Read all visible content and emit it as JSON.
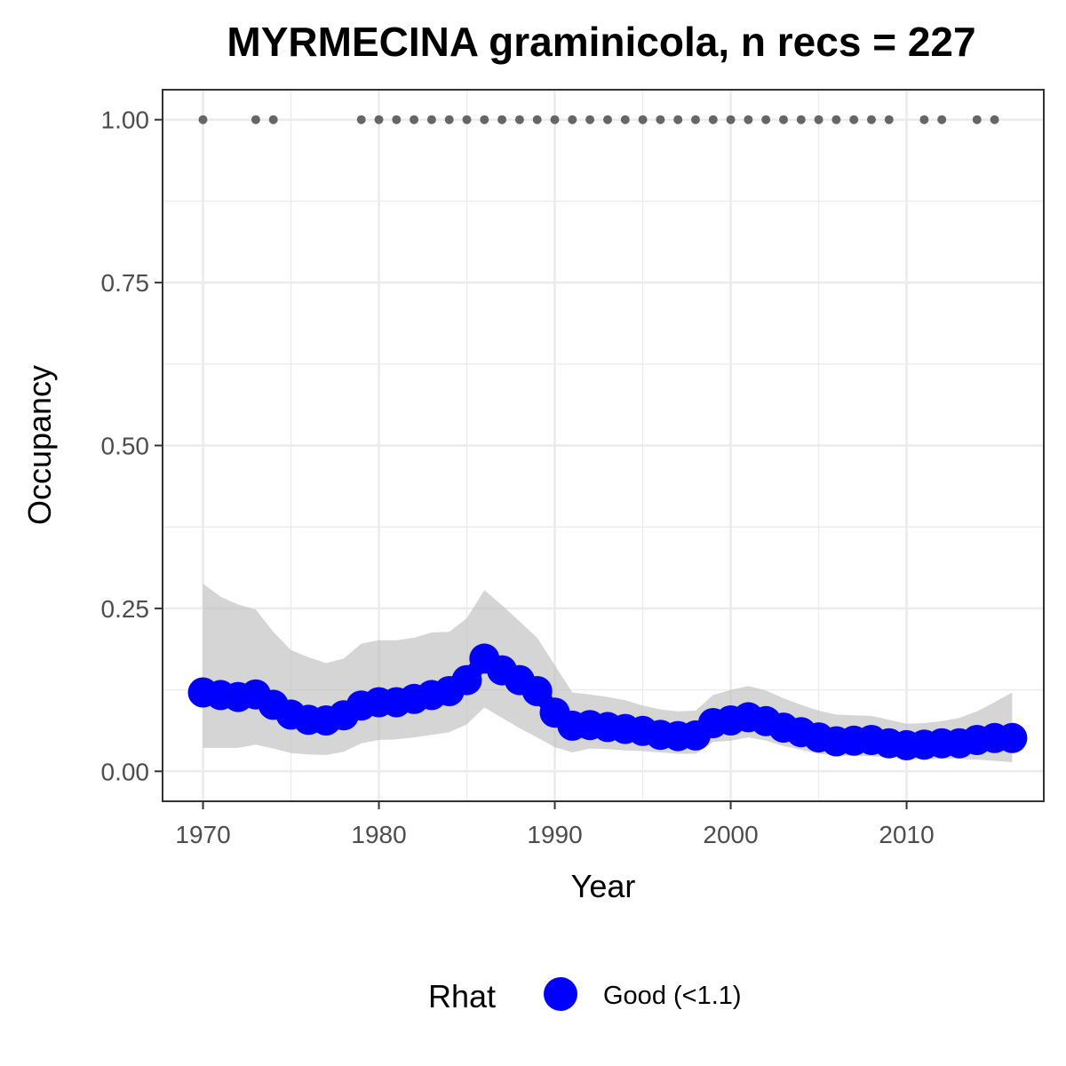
{
  "chart_data": {
    "type": "line",
    "title": "MYRMECINA graminicola, n recs = 227",
    "xlabel": "Year",
    "ylabel": "Occupancy",
    "xlim": [
      1967.7,
      2017.8
    ],
    "ylim": [
      -0.046,
      1.046
    ],
    "x_ticks": [
      1970,
      1980,
      1990,
      2000,
      2010
    ],
    "y_ticks": [
      0.0,
      0.25,
      0.5,
      0.75,
      1.0
    ],
    "y_tick_labels": [
      "0.00",
      "0.25",
      "0.50",
      "0.75",
      "1.00"
    ],
    "grid": true,
    "legend_position": "bottom",
    "legend": {
      "title": "Rhat",
      "label": "Good (<1.1)",
      "color": "#0000ff"
    },
    "colors": {
      "line": "#0000ff",
      "ribbon": "#bebebe",
      "records": "#666666",
      "grid": "#ebebeb",
      "panel_border": "#333333"
    },
    "series": [
      {
        "name": "Good (<1.1)",
        "x": [
          1970,
          1971,
          1972,
          1973,
          1974,
          1975,
          1976,
          1977,
          1978,
          1979,
          1980,
          1981,
          1982,
          1983,
          1984,
          1985,
          1986,
          1987,
          1988,
          1989,
          1990,
          1991,
          1992,
          1993,
          1994,
          1995,
          1996,
          1997,
          1998,
          1999,
          2000,
          2001,
          2002,
          2003,
          2004,
          2005,
          2006,
          2007,
          2008,
          2009,
          2010,
          2011,
          2012,
          2013,
          2014,
          2015,
          2016
        ],
        "y": [
          0.121,
          0.117,
          0.114,
          0.118,
          0.102,
          0.087,
          0.079,
          0.078,
          0.086,
          0.101,
          0.106,
          0.106,
          0.111,
          0.117,
          0.123,
          0.14,
          0.173,
          0.155,
          0.14,
          0.123,
          0.09,
          0.07,
          0.071,
          0.068,
          0.065,
          0.062,
          0.056,
          0.054,
          0.055,
          0.074,
          0.078,
          0.083,
          0.077,
          0.067,
          0.06,
          0.052,
          0.046,
          0.047,
          0.048,
          0.043,
          0.04,
          0.041,
          0.043,
          0.043,
          0.048,
          0.051,
          0.051
        ],
        "lower": [
          0.036,
          0.036,
          0.036,
          0.041,
          0.035,
          0.028,
          0.026,
          0.025,
          0.03,
          0.043,
          0.048,
          0.049,
          0.052,
          0.056,
          0.06,
          0.072,
          0.098,
          0.082,
          0.066,
          0.052,
          0.037,
          0.029,
          0.035,
          0.034,
          0.032,
          0.031,
          0.029,
          0.027,
          0.027,
          0.045,
          0.047,
          0.052,
          0.047,
          0.039,
          0.033,
          0.027,
          0.024,
          0.024,
          0.023,
          0.021,
          0.019,
          0.018,
          0.019,
          0.019,
          0.018,
          0.016,
          0.014
        ],
        "upper": [
          0.288,
          0.268,
          0.256,
          0.248,
          0.214,
          0.186,
          0.175,
          0.166,
          0.173,
          0.196,
          0.201,
          0.201,
          0.205,
          0.213,
          0.214,
          0.235,
          0.278,
          0.255,
          0.23,
          0.205,
          0.163,
          0.121,
          0.118,
          0.114,
          0.109,
          0.101,
          0.095,
          0.092,
          0.093,
          0.117,
          0.125,
          0.131,
          0.124,
          0.112,
          0.102,
          0.093,
          0.087,
          0.086,
          0.085,
          0.079,
          0.073,
          0.074,
          0.077,
          0.082,
          0.092,
          0.106,
          0.121
        ]
      }
    ],
    "records": {
      "name": "records",
      "x": [
        1970,
        1973,
        1974,
        1979,
        1980,
        1981,
        1982,
        1983,
        1984,
        1985,
        1986,
        1987,
        1988,
        1989,
        1990,
        1991,
        1992,
        1993,
        1994,
        1995,
        1996,
        1997,
        1998,
        1999,
        2000,
        2001,
        2002,
        2003,
        2004,
        2005,
        2006,
        2007,
        2008,
        2009,
        2011,
        2012,
        2014,
        2015
      ],
      "y": 1.0
    }
  }
}
